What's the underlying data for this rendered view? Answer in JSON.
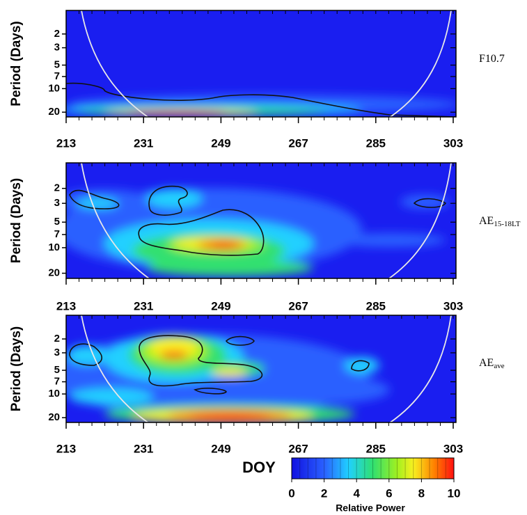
{
  "chart_data": [
    {
      "type": "wavelet",
      "ylabel": "Period (Days)",
      "label": "F10.7",
      "xlim": [
        213,
        303
      ],
      "xticks": [
        213,
        231,
        249,
        267,
        285,
        303
      ],
      "ylim": [
        1,
        23
      ],
      "yticks": [
        2,
        3,
        5,
        7,
        10,
        20
      ],
      "log_y": true
    },
    {
      "type": "wavelet",
      "ylabel": "Period (Days)",
      "label": "AE",
      "label_sub": "15-18LT",
      "xlim": [
        213,
        303
      ],
      "xticks": [
        213,
        231,
        249,
        267,
        285,
        303
      ],
      "ylim": [
        1,
        23
      ],
      "yticks": [
        2,
        3,
        5,
        7,
        10,
        20
      ],
      "log_y": true
    },
    {
      "type": "wavelet",
      "ylabel": "Period (Days)",
      "label": "AE",
      "label_sub": "ave",
      "xlim": [
        213,
        303
      ],
      "xticks": [
        213,
        231,
        249,
        267,
        285,
        303
      ],
      "ylim": [
        1,
        23
      ],
      "yticks": [
        2,
        3,
        5,
        7,
        10,
        20
      ],
      "log_y": true
    }
  ],
  "xlabel": "DOY",
  "colorbar": {
    "label": "Relative Power",
    "lim": [
      0,
      10
    ],
    "ticks": [
      0,
      2,
      4,
      6,
      8,
      10
    ]
  }
}
